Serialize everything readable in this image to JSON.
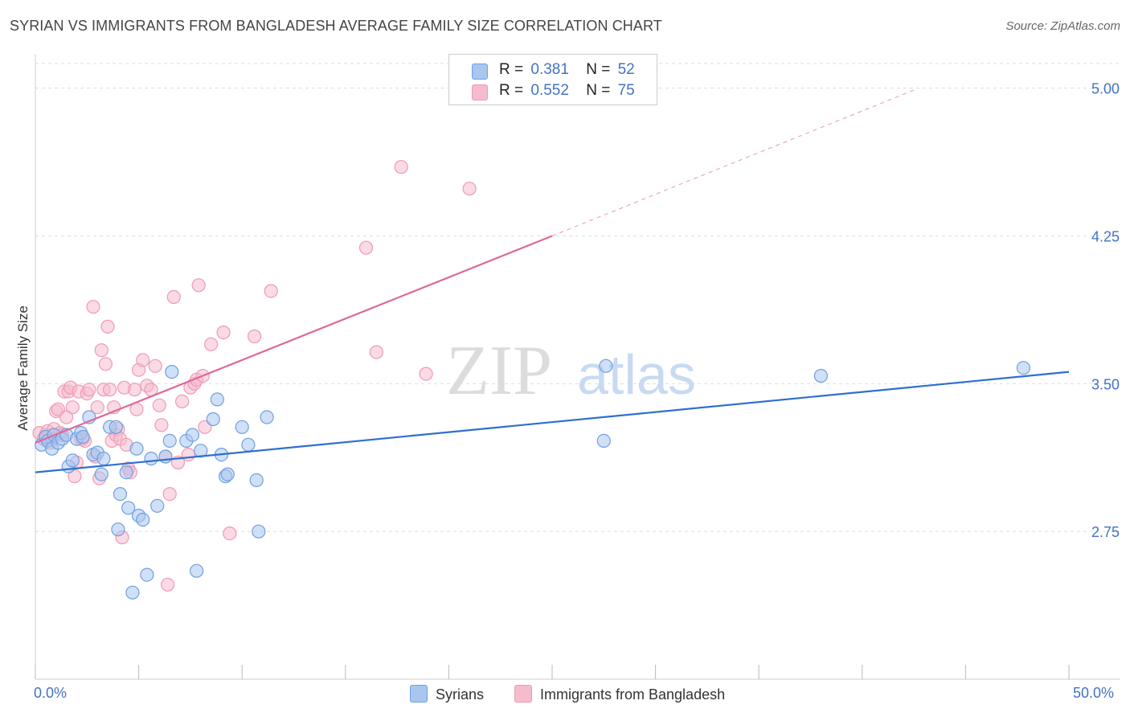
{
  "title": "SYRIAN VS IMMIGRANTS FROM BANGLADESH AVERAGE FAMILY SIZE CORRELATION CHART",
  "source": "Source: ZipAtlas.com",
  "watermark": {
    "zip": "ZIP",
    "atlas": "atlas"
  },
  "legend": {
    "rows": [
      {
        "r_label": "R =",
        "r_value": "0.381",
        "n_label": "N =",
        "n_value": "52"
      },
      {
        "r_label": "R =",
        "r_value": "0.552",
        "n_label": "N =",
        "n_value": "75"
      }
    ]
  },
  "bottom_legend": [
    "Syrians",
    "Immigrants from Bangladesh"
  ],
  "colors": {
    "syrians_fill": "#a9c6f0",
    "syrians_stroke": "#6f9fe0",
    "syrians_line": "#2f6fcf",
    "bangladesh_fill": "#f6bccd",
    "bangladesh_stroke": "#ef9ab4",
    "bangladesh_line": "#e0679a",
    "axis_text": "#4472c4",
    "grid": "#dddddd"
  },
  "chart_data": {
    "type": "scatter",
    "title": "SYRIAN VS IMMIGRANTS FROM BANGLADESH AVERAGE FAMILY SIZE CORRELATION CHART",
    "xlabel": "",
    "ylabel": "Average Family Size",
    "xlim": [
      0,
      50
    ],
    "ylim": [
      2.0,
      5.17
    ],
    "x_tick_labels": [
      "0.0%",
      "50.0%"
    ],
    "y_ticks": [
      2.75,
      3.5,
      4.25,
      5.0
    ],
    "y_tick_labels": [
      "2.75",
      "3.50",
      "4.25",
      "5.00"
    ],
    "grid": "horizontal dashed",
    "legend_position": "top-center",
    "series": [
      {
        "name": "Syrians",
        "R": 0.381,
        "N": 52,
        "trend": {
          "x": [
            0,
            50
          ],
          "y": [
            3.05,
            3.56
          ],
          "style": "solid"
        },
        "points": [
          [
            0.3,
            3.19
          ],
          [
            0.5,
            3.23
          ],
          [
            0.6,
            3.21
          ],
          [
            0.8,
            3.17
          ],
          [
            0.9,
            3.24
          ],
          [
            1.1,
            3.2
          ],
          [
            1.3,
            3.22
          ],
          [
            1.5,
            3.24
          ],
          [
            1.6,
            3.08
          ],
          [
            1.8,
            3.11
          ],
          [
            2.0,
            3.22
          ],
          [
            2.2,
            3.25
          ],
          [
            2.3,
            3.23
          ],
          [
            2.6,
            3.33
          ],
          [
            2.8,
            3.14
          ],
          [
            3.0,
            3.15
          ],
          [
            3.2,
            3.04
          ],
          [
            3.3,
            3.12
          ],
          [
            3.6,
            3.28
          ],
          [
            3.9,
            3.28
          ],
          [
            4.0,
            2.76
          ],
          [
            4.1,
            2.94
          ],
          [
            4.4,
            3.05
          ],
          [
            4.5,
            2.87
          ],
          [
            4.7,
            2.44
          ],
          [
            4.9,
            3.17
          ],
          [
            5.0,
            2.83
          ],
          [
            5.2,
            2.81
          ],
          [
            5.4,
            2.53
          ],
          [
            5.6,
            3.12
          ],
          [
            5.9,
            2.88
          ],
          [
            6.3,
            3.13
          ],
          [
            6.5,
            3.21
          ],
          [
            6.6,
            3.56
          ],
          [
            7.3,
            3.21
          ],
          [
            7.6,
            3.24
          ],
          [
            7.8,
            2.55
          ],
          [
            8.0,
            3.16
          ],
          [
            8.6,
            3.32
          ],
          [
            8.8,
            3.42
          ],
          [
            9.0,
            3.14
          ],
          [
            9.2,
            3.03
          ],
          [
            9.3,
            3.04
          ],
          [
            10.0,
            3.28
          ],
          [
            10.3,
            3.19
          ],
          [
            10.7,
            3.01
          ],
          [
            10.8,
            2.75
          ],
          [
            11.2,
            3.33
          ],
          [
            27.5,
            3.21
          ],
          [
            27.6,
            3.59
          ],
          [
            38.0,
            3.54
          ],
          [
            47.8,
            3.58
          ]
        ]
      },
      {
        "name": "Immigrants from Bangladesh",
        "R": 0.552,
        "N": 75,
        "trend": {
          "x": [
            0,
            25
          ],
          "y": [
            3.2,
            4.25
          ],
          "style": "solid",
          "extension": {
            "x": [
              25,
              42.5
            ],
            "y": [
              4.25,
              4.99
            ],
            "style": "dashed"
          }
        },
        "points": [
          [
            0.2,
            3.25
          ],
          [
            0.4,
            3.22
          ],
          [
            0.5,
            3.24
          ],
          [
            0.6,
            3.26
          ],
          [
            0.7,
            3.2
          ],
          [
            0.8,
            3.22
          ],
          [
            0.9,
            3.27
          ],
          [
            1.0,
            3.36
          ],
          [
            1.1,
            3.37
          ],
          [
            1.2,
            3.25
          ],
          [
            1.3,
            3.24
          ],
          [
            1.4,
            3.46
          ],
          [
            1.5,
            3.33
          ],
          [
            1.6,
            3.46
          ],
          [
            1.7,
            3.48
          ],
          [
            1.8,
            3.38
          ],
          [
            1.9,
            3.03
          ],
          [
            2.0,
            3.1
          ],
          [
            2.1,
            3.46
          ],
          [
            2.2,
            3.22
          ],
          [
            2.3,
            3.22
          ],
          [
            2.4,
            3.21
          ],
          [
            2.5,
            3.45
          ],
          [
            2.6,
            3.47
          ],
          [
            2.8,
            3.89
          ],
          [
            2.9,
            3.13
          ],
          [
            3.0,
            3.38
          ],
          [
            3.1,
            3.02
          ],
          [
            3.2,
            3.67
          ],
          [
            3.3,
            3.47
          ],
          [
            3.4,
            3.6
          ],
          [
            3.5,
            3.79
          ],
          [
            3.6,
            3.47
          ],
          [
            3.7,
            3.21
          ],
          [
            3.8,
            3.38
          ],
          [
            3.9,
            3.24
          ],
          [
            4.0,
            3.27
          ],
          [
            4.1,
            3.22
          ],
          [
            4.2,
            2.72
          ],
          [
            4.3,
            3.48
          ],
          [
            4.4,
            3.19
          ],
          [
            4.5,
            3.07
          ],
          [
            4.6,
            3.05
          ],
          [
            4.8,
            3.47
          ],
          [
            4.9,
            3.37
          ],
          [
            5.0,
            3.57
          ],
          [
            5.2,
            3.62
          ],
          [
            5.4,
            3.49
          ],
          [
            5.6,
            3.47
          ],
          [
            5.8,
            3.59
          ],
          [
            6.0,
            3.39
          ],
          [
            6.1,
            3.29
          ],
          [
            6.3,
            3.13
          ],
          [
            6.4,
            2.48
          ],
          [
            6.5,
            2.94
          ],
          [
            6.7,
            3.94
          ],
          [
            6.9,
            3.1
          ],
          [
            7.1,
            3.41
          ],
          [
            7.4,
            3.14
          ],
          [
            7.5,
            3.48
          ],
          [
            7.7,
            3.5
          ],
          [
            7.8,
            3.52
          ],
          [
            7.9,
            4.0
          ],
          [
            8.1,
            3.54
          ],
          [
            8.2,
            3.28
          ],
          [
            8.5,
            3.7
          ],
          [
            9.1,
            3.76
          ],
          [
            9.4,
            2.74
          ],
          [
            10.6,
            3.74
          ],
          [
            11.4,
            3.97
          ],
          [
            16.0,
            4.19
          ],
          [
            16.5,
            3.66
          ],
          [
            17.7,
            4.6
          ],
          [
            18.9,
            3.55
          ],
          [
            21.0,
            4.49
          ]
        ]
      }
    ]
  }
}
